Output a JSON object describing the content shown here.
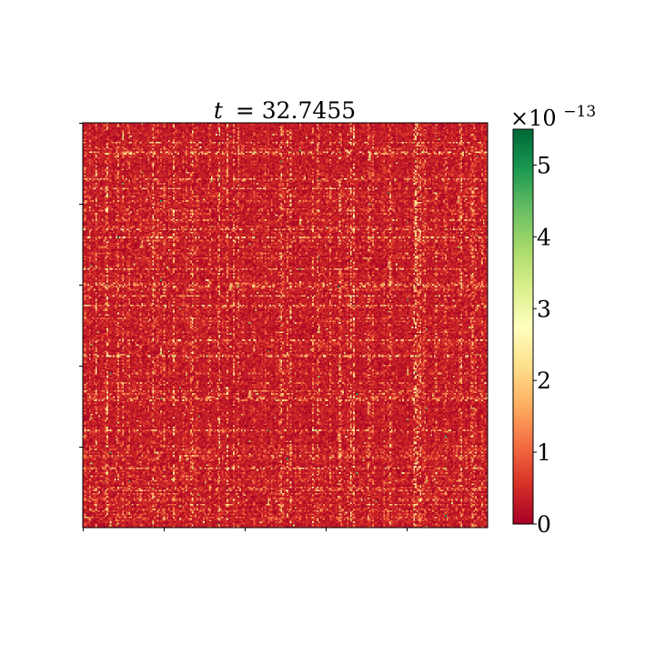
{
  "chart_data": {
    "type": "heatmap",
    "title_lhs": "t",
    "title_rhs": "= 32.7455",
    "xlabel": "",
    "ylabel": "",
    "grid_size": 256,
    "colormap": "RdYlGn",
    "colormap_stops": [
      "#a50026",
      "#d73027",
      "#f46d43",
      "#fdae61",
      "#fee08b",
      "#ffffbf",
      "#d9ef8b",
      "#a6d96a",
      "#66bd63",
      "#1a9850",
      "#006837"
    ],
    "value_range": [
      0,
      5.5
    ],
    "value_scale_text": "×10",
    "value_scale_exponent": "−13",
    "colorbar": {
      "ticks": [
        0,
        1,
        2,
        3,
        4,
        5
      ],
      "tick_labels": [
        "0",
        "1",
        "2",
        "3",
        "4",
        "5"
      ]
    },
    "x_ticks": 5,
    "y_ticks": 5,
    "tick_labels_shown": false,
    "grid": false,
    "legend": "none"
  }
}
